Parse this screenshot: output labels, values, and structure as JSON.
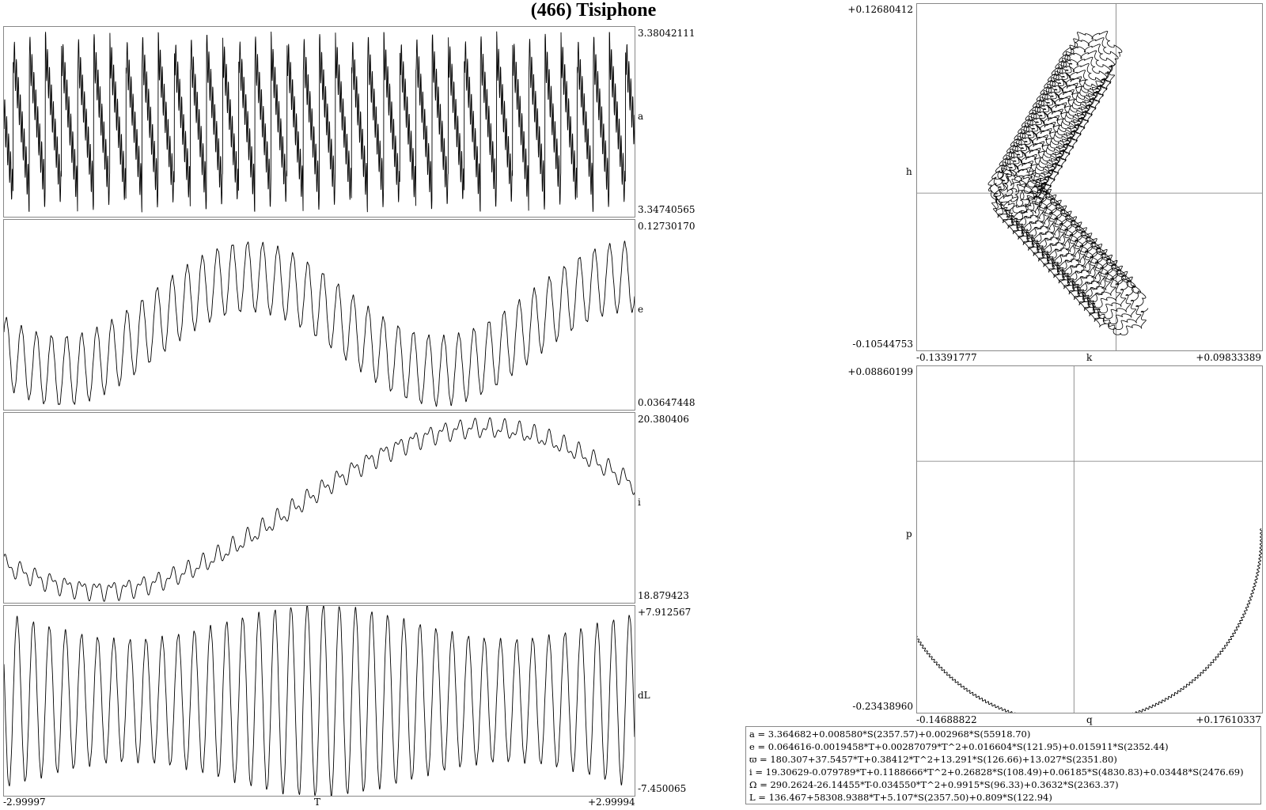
{
  "title": "(466) Tisiphone",
  "chart_data": [
    {
      "type": "line",
      "ylabel": "a",
      "ylim": [
        3.34740565,
        3.38042111
      ],
      "ymax_label": "3.38042111",
      "ymin_label": "3.34740565",
      "xlim": [
        -2.99997,
        2.99994
      ],
      "model": {
        "mean": 3.3639,
        "trend": 0,
        "slow_amp": 0,
        "slow_period": 6,
        "fast_amp": 0.0125,
        "fast_period": 0.1533,
        "fast_shape": "sawtooth",
        "ripple_amp": 0.0035,
        "ripple_period": 0.0185
      }
    },
    {
      "type": "line",
      "ylabel": "e",
      "ylim": [
        0.03647448,
        0.1273017
      ],
      "ymax_label": "0.12730170",
      "ymin_label": "0.03647448",
      "xlim": [
        -2.99997,
        2.99994
      ],
      "model": {
        "mean": 0.0776,
        "trend": 0.0,
        "slow_amp": 0.0225,
        "slow_period": 3.6,
        "slow_phase": 1.15,
        "fast_amp": 0.0165,
        "fast_period": 0.1435,
        "fast_shape": "sine",
        "ripple_amp": 0.0006,
        "ripple_period": 0.02
      }
    },
    {
      "type": "line",
      "ylabel": "i",
      "ylim": [
        18.879423,
        20.380406
      ],
      "ymax_label": "20.380406",
      "ymin_label": "18.879423",
      "xlim": [
        -2.99997,
        2.99994
      ],
      "model": {
        "mean": 19.62,
        "trend": 0.0,
        "slow_amp": 0.64,
        "slow_period": 7.2,
        "slow_phase": -1.35,
        "fast_amp": 0.055,
        "fast_period": 0.1435,
        "fast_shape": "sine",
        "ripple_amp": 0.035,
        "ripple_period": 0.07
      }
    },
    {
      "type": "line",
      "ylabel": "dL",
      "ylim": [
        -7.450065,
        7.912567
      ],
      "ymax_label": "+7.912567",
      "ymin_label": "-7.450065",
      "xlim": [
        -2.99997,
        2.99994
      ],
      "xmin_label": "-2.99997",
      "xmax_label": "+2.99994",
      "xlabel": "T",
      "model": {
        "mean": 0.25,
        "trend": 0,
        "slow_amp": 0,
        "slow_period": 6,
        "fast_amp": 6.3,
        "fast_period": 0.1533,
        "fast_shape": "sine",
        "env_amp": 0.22,
        "env_period": 3.6,
        "ripple_amp": 0.12,
        "ripple_period": 0.02
      }
    },
    {
      "type": "scatter",
      "xlabel": "k",
      "ylabel": "h",
      "xlim": [
        -0.13391777,
        0.09833389
      ],
      "ylim": [
        -0.10544753,
        0.12680412
      ],
      "xmin_label": "-0.13391777",
      "xmax_label": "+0.09833389",
      "ymin_label": "-0.10544753",
      "ymax_label": "+0.12680412",
      "model": {
        "forced_k": -0.068,
        "forced_h": 0.0,
        "free_amp": 0.0855,
        "free_start_deg": 60,
        "free_end_deg": -47,
        "loop_amp": 0.0165,
        "n_loops": 42,
        "ripple_amp": 0.0012
      }
    },
    {
      "type": "scatter",
      "xlabel": "q",
      "ylabel": "p",
      "xlim": [
        -0.14688822,
        0.17610337
      ],
      "ylim": [
        -0.2343896,
        0.08860199
      ],
      "xmin_label": "-0.14688822",
      "xmax_label": "+0.17610337",
      "ymin_label": "-0.23438960",
      "ymax_label": "+0.08860199",
      "model": {
        "center_q": 0.0,
        "center_p": -0.069,
        "radius": 0.1755,
        "start_deg": 184,
        "end_deg": 362,
        "ripple_amp": 0.0011,
        "ripple_n": 160
      }
    }
  ],
  "formulas": [
    "a = 3.364682+0.008580*S(2357.57)+0.002968*S(55918.70)",
    "e = 0.064616-0.0019458*T+0.00287079*T^2+0.016604*S(121.95)+0.015911*S(2352.44)",
    "ϖ = 180.307+37.5457*T+0.38412*T^2+13.291*S(126.66)+13.027*S(2351.80)",
    "i = 19.30629-0.079789*T+0.1188666*T^2+0.26828*S(108.49)+0.06185*S(4830.83)+0.03448*S(2476.69)",
    "Ω = 290.2624-26.14455*T-0.034550*T^2+0.9915*S(96.33)+0.3632*S(2363.37)",
    "L = 136.467+58308.9388*T+5.107*S(2357.50)+0.809*S(122.94)"
  ]
}
